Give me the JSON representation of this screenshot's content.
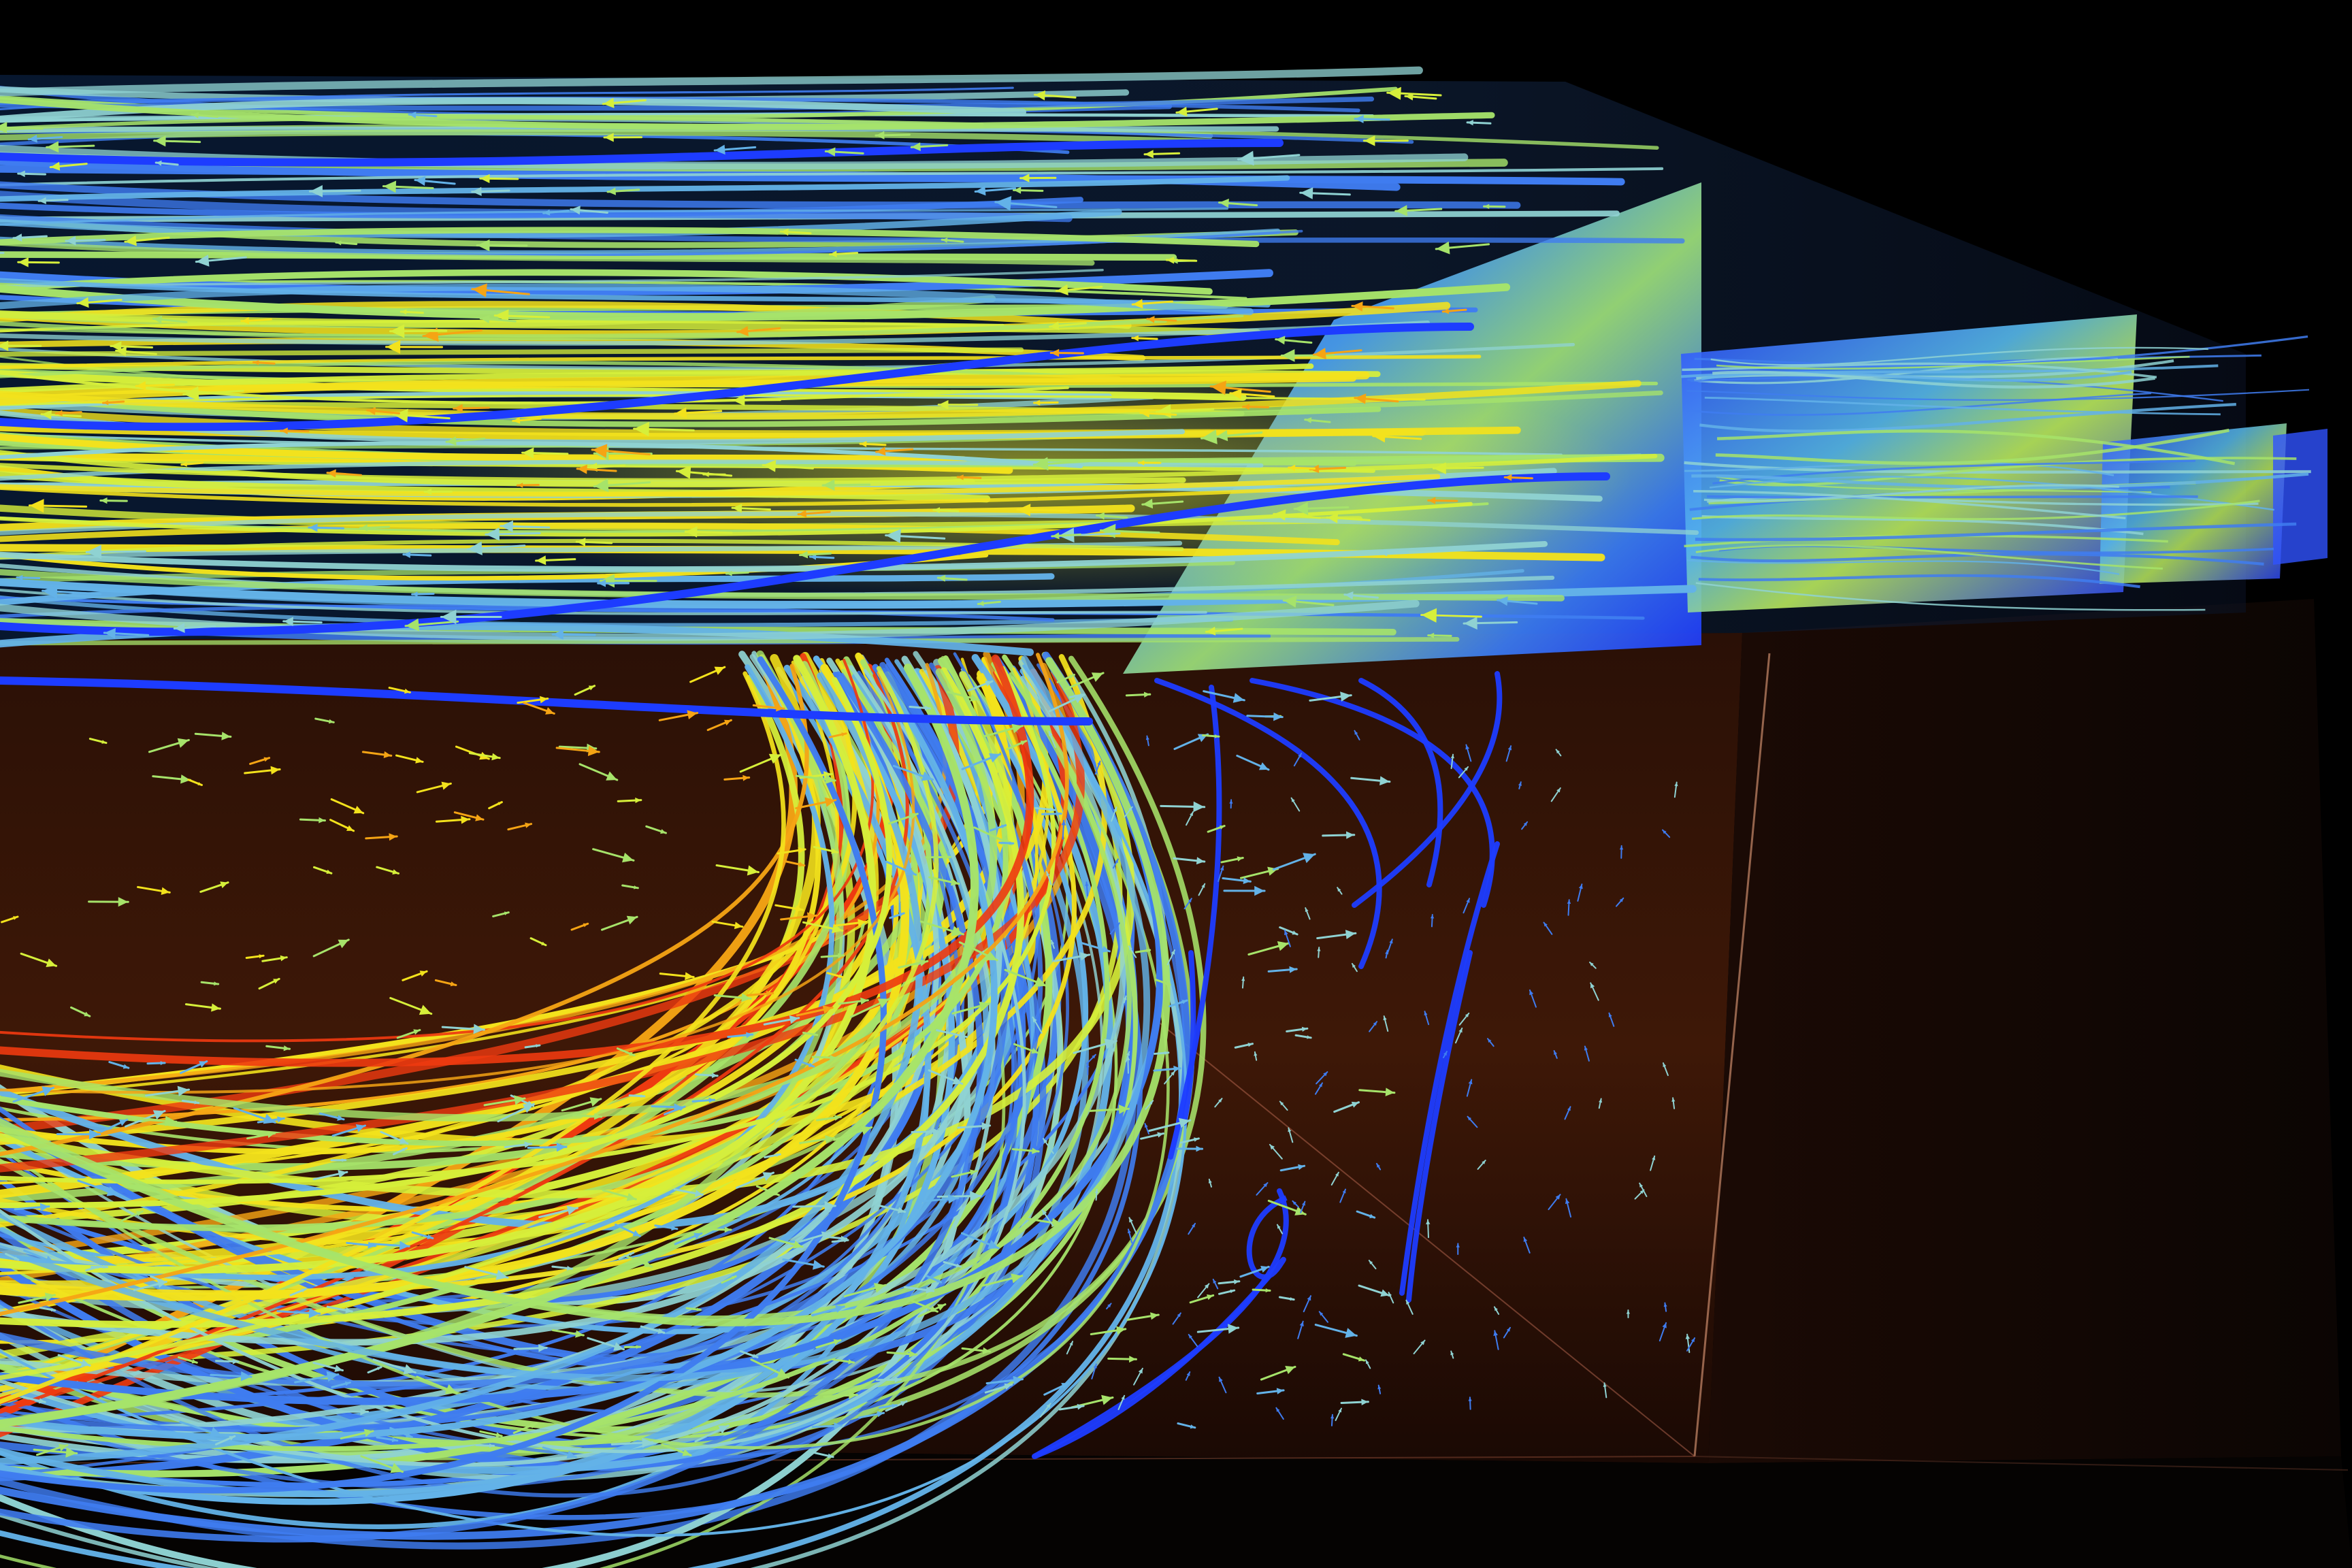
{
  "scene": {
    "subject": "3d-cfd-flow-visualization",
    "background_color": "#000000",
    "room_wall_color": "#3a1608",
    "colormap": [
      "#1d3cff",
      "#3f7cf0",
      "#63b2e8",
      "#8fd2d2",
      "#a6e36a",
      "#d6ef3a",
      "#f3e21c",
      "#f5a414",
      "#ee3a10"
    ],
    "elements": {
      "upper_streamlines": "horizontal-flow-streamlines",
      "lower_streamlines": "recirculation-vortex-streamlines",
      "cut_planes": "contour-slice-planes",
      "vectors": "velocity-arrow-glyphs",
      "domain": "room-bounding-box"
    }
  }
}
